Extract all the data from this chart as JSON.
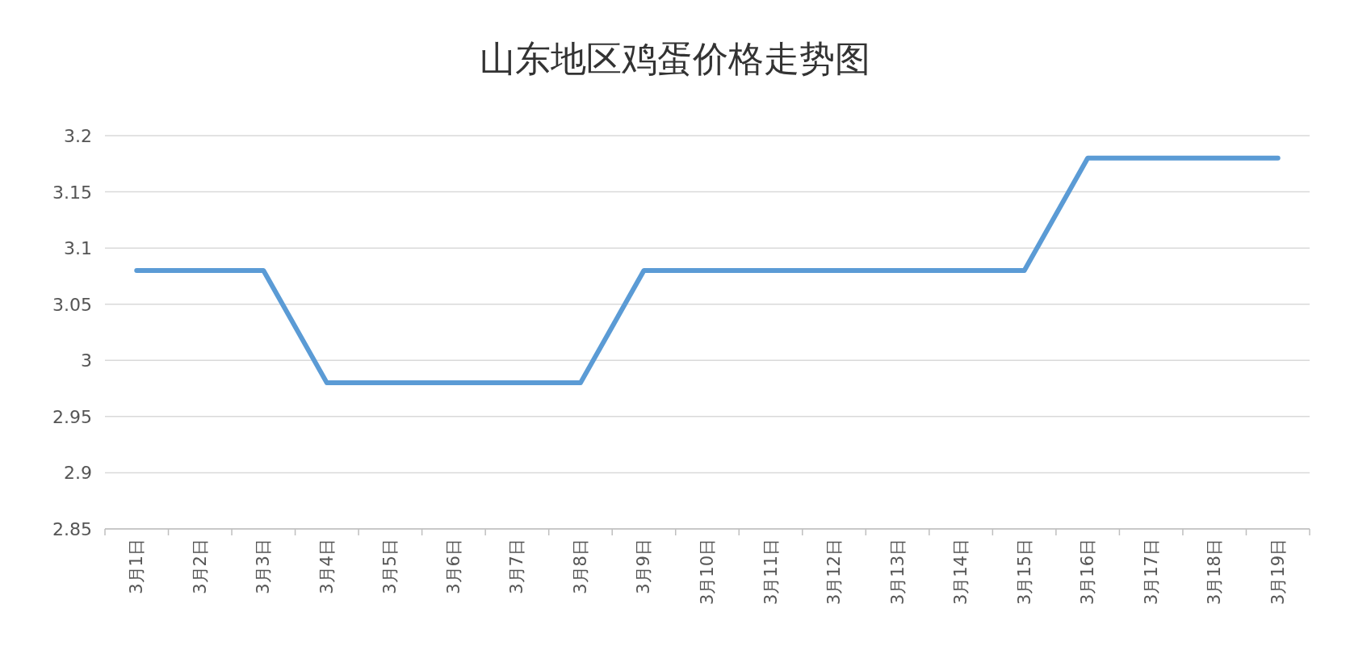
{
  "chart_data": {
    "type": "line",
    "title": "山东地区鸡蛋价格走势图",
    "categories": [
      "3月1日",
      "3月2日",
      "3月3日",
      "3月4日",
      "3月5日",
      "3月6日",
      "3月7日",
      "3月8日",
      "3月9日",
      "3月10日",
      "3月11日",
      "3月12日",
      "3月13日",
      "3月14日",
      "3月15日",
      "3月16日",
      "3月17日",
      "3月18日",
      "3月19日"
    ],
    "series": [
      {
        "color": "#5b9bd5",
        "values": [
          3.08,
          3.08,
          3.08,
          2.98,
          2.98,
          2.98,
          2.98,
          2.98,
          3.08,
          3.08,
          3.08,
          3.08,
          3.08,
          3.08,
          3.08,
          3.18,
          3.18,
          3.18,
          3.18
        ]
      }
    ],
    "ylim": [
      2.85,
      3.2
    ],
    "yticks": [
      2.85,
      2.9,
      2.95,
      3,
      3.05,
      3.1,
      3.15,
      3.2
    ],
    "grid": "y"
  }
}
